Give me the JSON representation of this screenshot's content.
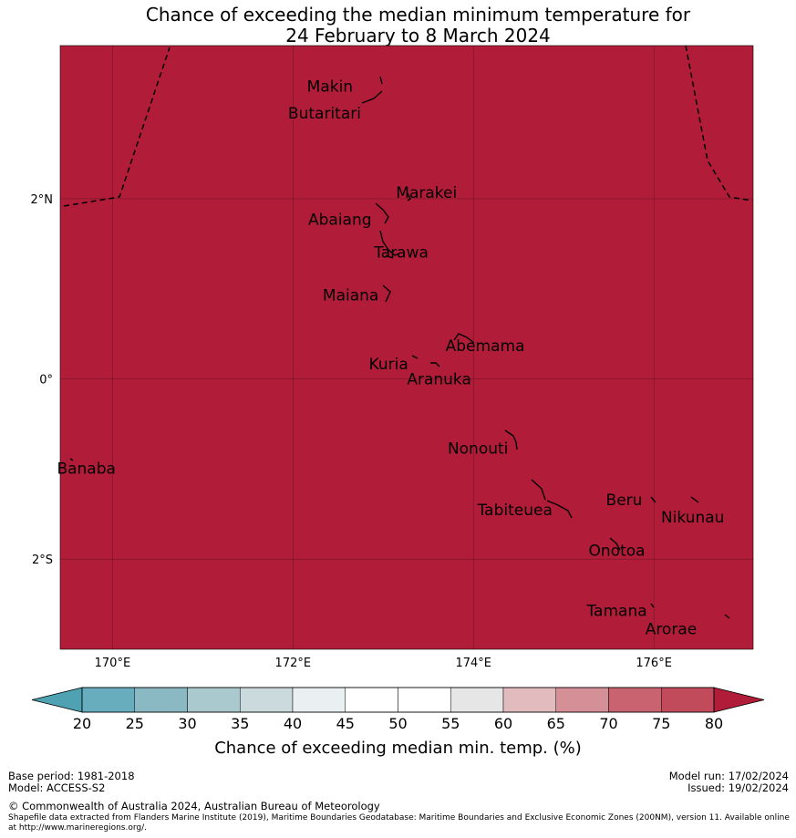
{
  "title": {
    "line1": "Chance of exceeding the median minimum temperature for",
    "line2": "24 February to 8 March 2024"
  },
  "map": {
    "fill_color": "#b11d39",
    "lat_range": [
      -3.0,
      3.7
    ],
    "lon_range": [
      169.42,
      177.1
    ],
    "lat_ticks": [
      {
        "value": 2,
        "label": "2°N"
      },
      {
        "value": 0,
        "label": "0°"
      },
      {
        "value": -2,
        "label": "2°S"
      }
    ],
    "lon_ticks": [
      {
        "value": 170,
        "label": "170°E"
      },
      {
        "value": 172,
        "label": "172°E"
      },
      {
        "value": 174,
        "label": "174°E"
      },
      {
        "value": 176,
        "label": "176°E"
      }
    ],
    "places": [
      {
        "name": "Makin",
        "lon": 172.41,
        "lat": 3.25
      },
      {
        "name": "Butaritari",
        "lon": 172.35,
        "lat": 2.95
      },
      {
        "name": "Marakei",
        "lon": 173.48,
        "lat": 2.07
      },
      {
        "name": "Abaiang",
        "lon": 172.52,
        "lat": 1.77
      },
      {
        "name": "Tarawa",
        "lon": 173.2,
        "lat": 1.41
      },
      {
        "name": "Maiana",
        "lon": 172.64,
        "lat": 0.93
      },
      {
        "name": "Abemama",
        "lon": 174.13,
        "lat": 0.37
      },
      {
        "name": "Kuria",
        "lon": 173.06,
        "lat": 0.17
      },
      {
        "name": "Aranuka",
        "lon": 173.62,
        "lat": 0.0
      },
      {
        "name": "Nonouti",
        "lon": 174.05,
        "lat": -0.77
      },
      {
        "name": "Banaba",
        "lon": 169.71,
        "lat": -0.99
      },
      {
        "name": "Tabiteuea",
        "lon": 174.46,
        "lat": -1.45
      },
      {
        "name": "Beru",
        "lon": 175.67,
        "lat": -1.34
      },
      {
        "name": "Nikunau",
        "lon": 176.43,
        "lat": -1.53
      },
      {
        "name": "Onotoa",
        "lon": 175.59,
        "lat": -1.9
      },
      {
        "name": "Tamana",
        "lon": 175.59,
        "lat": -2.57
      },
      {
        "name": "Arorae",
        "lon": 176.19,
        "lat": -2.77
      }
    ]
  },
  "colorbar": {
    "colors": [
      "#4ea2b2",
      "#68adbd",
      "#8ab9c4",
      "#a9c9ce",
      "#cbdadd",
      "#eaf0f1",
      "#ffffff",
      "#ffffff",
      "#e6e6e6",
      "#e2bbbf",
      "#d58f97",
      "#c9636f",
      "#c14b5b",
      "#b11d39"
    ],
    "ticks": [
      "20",
      "25",
      "30",
      "35",
      "40",
      "45",
      "50",
      "55",
      "60",
      "65",
      "70",
      "75",
      "80"
    ],
    "label": "Chance of exceeding median min. temp. (%)"
  },
  "footer": {
    "base_period": "Base period: 1981-2018",
    "model": "Model: ACCESS-S2",
    "model_run": "Model run: 17/02/2024",
    "issued": "Issued: 19/02/2024",
    "copyright": "© Commonwealth of Australia 2024, Australian Bureau of Meteorology",
    "shapefile": "Shapefile data extracted from Flanders Marine Institute (2019), Maritime Boundaries Geodatabase: Maritime Boundaries and Exclusive Economic Zones (200NM), version 11. Available online at http://www.marineregions.org/."
  }
}
